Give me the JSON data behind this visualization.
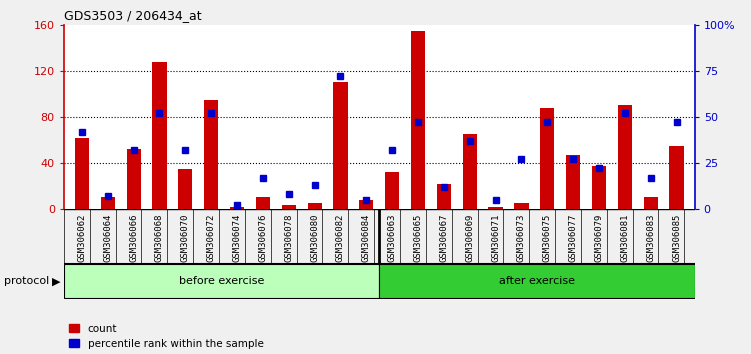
{
  "title": "GDS3503 / 206434_at",
  "samples": [
    "GSM306062",
    "GSM306064",
    "GSM306066",
    "GSM306068",
    "GSM306070",
    "GSM306072",
    "GSM306074",
    "GSM306076",
    "GSM306078",
    "GSM306080",
    "GSM306082",
    "GSM306084",
    "GSM306063",
    "GSM306065",
    "GSM306067",
    "GSM306069",
    "GSM306071",
    "GSM306073",
    "GSM306075",
    "GSM306077",
    "GSM306079",
    "GSM306081",
    "GSM306083",
    "GSM306085"
  ],
  "count": [
    62,
    10,
    52,
    128,
    35,
    95,
    2,
    10,
    3,
    5,
    110,
    8,
    32,
    155,
    22,
    65,
    2,
    5,
    88,
    47,
    37,
    90,
    10,
    55
  ],
  "percentile": [
    42,
    7,
    32,
    52,
    32,
    52,
    2,
    17,
    8,
    13,
    72,
    5,
    32,
    47,
    12,
    37,
    5,
    27,
    47,
    27,
    22,
    52,
    17,
    47
  ],
  "before_count": 12,
  "after_count": 12,
  "ylim_left": [
    0,
    160
  ],
  "ylim_right": [
    0,
    100
  ],
  "yticks_left": [
    0,
    40,
    80,
    120,
    160
  ],
  "yticks_right": [
    0,
    25,
    50,
    75,
    100
  ],
  "ytick_labels_right": [
    "0",
    "25",
    "50",
    "75",
    "100%"
  ],
  "bar_color_red": "#cc0000",
  "bar_color_blue": "#0000cc",
  "before_color": "#bbffbb",
  "after_color": "#33cc33",
  "before_label": "before exercise",
  "after_label": "after exercise",
  "protocol_label": "protocol",
  "legend_count": "count",
  "legend_pct": "percentile rank within the sample",
  "bg_color": "#cccccc",
  "plot_bg": "#ffffff",
  "fig_bg": "#f0f0f0"
}
